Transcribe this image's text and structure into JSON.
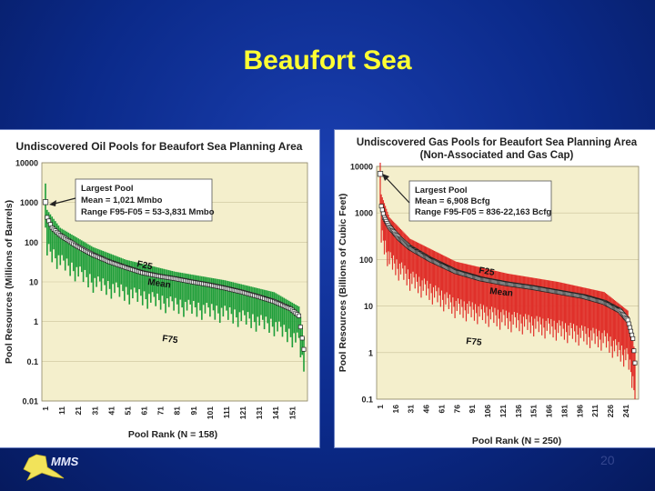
{
  "slide": {
    "title": "Beaufort Sea",
    "logo_text": "MMS",
    "page_number": "20"
  },
  "colors": {
    "background": "#0b2a8a",
    "title": "#ffff33",
    "plot_background": "#f4efcc",
    "oil_series": "#1f9e3a",
    "gas_series": "#e0302a",
    "mean_markers": "#ffffff",
    "annotation_box": "#ffffff"
  },
  "chart_data": [
    {
      "type": "line",
      "title": "Undiscovered Oil Pools for Beaufort Sea Planning Area",
      "subtitle": "",
      "xlabel": "Pool Rank (N = 158)",
      "ylabel": "Pool Resources (Millions of Barrels)",
      "y_scale": "log",
      "ylim": [
        0.01,
        10000
      ],
      "y_ticks": [
        "10000",
        "1000",
        "100",
        "10",
        "1",
        "0.1",
        "0.01"
      ],
      "x_ticks": [
        "1",
        "11",
        "21",
        "31",
        "41",
        "51",
        "61",
        "71",
        "81",
        "91",
        "101",
        "111",
        "121",
        "131",
        "141",
        "151"
      ],
      "n": 158,
      "grid": true,
      "annotation": {
        "lines": [
          "Largest Pool",
          "Mean = 1,021 Mmbo",
          "Range F95-F05 = 53-3,831 Mmbo"
        ]
      },
      "curve_labels": [
        "F25",
        "Mean",
        "F75"
      ],
      "series": [
        {
          "name": "Mean",
          "points": [
            [
              1,
              1021
            ],
            [
              2,
              420
            ],
            [
              5,
              230
            ],
            [
              10,
              150
            ],
            [
              20,
              80
            ],
            [
              30,
              48
            ],
            [
              40,
              32
            ],
            [
              50,
              23
            ],
            [
              60,
              17
            ],
            [
              70,
              14
            ],
            [
              80,
              12
            ],
            [
              90,
              10
            ],
            [
              100,
              8.5
            ],
            [
              110,
              7
            ],
            [
              120,
              5.6
            ],
            [
              130,
              4.3
            ],
            [
              140,
              3.2
            ],
            [
              150,
              2.1
            ],
            [
              155,
              1.4
            ],
            [
              158,
              0.2
            ]
          ]
        },
        {
          "name": "F25",
          "points": [
            [
              1,
              3000
            ],
            [
              2,
              650
            ],
            [
              10,
              230
            ],
            [
              30,
              75
            ],
            [
              50,
              36
            ],
            [
              80,
              18
            ],
            [
              110,
              11
            ],
            [
              140,
              5.5
            ],
            [
              155,
              2.4
            ],
            [
              158,
              0.4
            ]
          ]
        },
        {
          "name": "F75",
          "points": [
            [
              1,
              300
            ],
            [
              2,
              100
            ],
            [
              10,
              50
            ],
            [
              30,
              15
            ],
            [
              50,
              8
            ],
            [
              80,
              4
            ],
            [
              110,
              2.5
            ],
            [
              140,
              1.2
            ],
            [
              155,
              0.5
            ],
            [
              158,
              0.08
            ]
          ]
        }
      ]
    },
    {
      "type": "line",
      "title": "Undiscovered Gas Pools for Beaufort Sea Planning Area",
      "subtitle": "(Non-Associated and Gas Cap)",
      "xlabel": "Pool Rank (N = 250)",
      "ylabel": "Pool Resources (Billions of Cubic Feet)",
      "y_scale": "log",
      "ylim": [
        0.1,
        10000
      ],
      "y_ticks": [
        "10000",
        "1000",
        "100",
        "10",
        "1",
        "0.1"
      ],
      "x_ticks": [
        "1",
        "16",
        "31",
        "46",
        "61",
        "76",
        "91",
        "106",
        "121",
        "136",
        "151",
        "166",
        "181",
        "196",
        "211",
        "226",
        "241"
      ],
      "n": 250,
      "grid": true,
      "annotation": {
        "lines": [
          "Largest Pool",
          "Mean = 6,908 Bcfg",
          "Range F95-F05 = 836-22,163 Bcfg"
        ]
      },
      "curve_labels": [
        "F25",
        "Mean",
        "F75"
      ],
      "series": [
        {
          "name": "Mean",
          "points": [
            [
              1,
              6908
            ],
            [
              2,
              1400
            ],
            [
              5,
              800
            ],
            [
              10,
              500
            ],
            [
              20,
              280
            ],
            [
              30,
              180
            ],
            [
              50,
              100
            ],
            [
              75,
              55
            ],
            [
              100,
              38
            ],
            [
              125,
              30
            ],
            [
              150,
              25
            ],
            [
              175,
              20
            ],
            [
              200,
              16
            ],
            [
              220,
              12
            ],
            [
              235,
              8
            ],
            [
              243,
              5
            ],
            [
              248,
              2
            ],
            [
              250,
              0.6
            ]
          ]
        },
        {
          "name": "F25",
          "points": [
            [
              1,
              12000
            ],
            [
              2,
              2500
            ],
            [
              10,
              800
            ],
            [
              30,
              280
            ],
            [
              75,
              90
            ],
            [
              125,
              50
            ],
            [
              175,
              33
            ],
            [
              220,
              20
            ],
            [
              243,
              8
            ],
            [
              250,
              1
            ]
          ]
        },
        {
          "name": "F75",
          "points": [
            [
              1,
              2000
            ],
            [
              2,
              500
            ],
            [
              10,
              150
            ],
            [
              30,
              60
            ],
            [
              75,
              15
            ],
            [
              125,
              8
            ],
            [
              175,
              5
            ],
            [
              220,
              3
            ],
            [
              243,
              1.2
            ],
            [
              250,
              0.2
            ]
          ]
        }
      ]
    }
  ]
}
